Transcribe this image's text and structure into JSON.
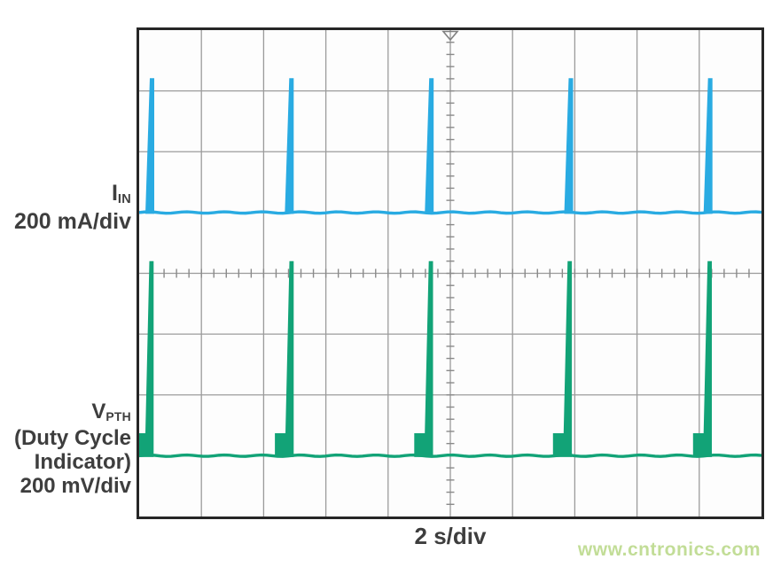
{
  "figure": {
    "background": "#ffffff",
    "plot_border_color": "#262626",
    "grid_color": "#9b9b9b",
    "tick_color": "#8a8a8a",
    "trigger_marker_color": "#808080",
    "text_color": "#3e3e3e"
  },
  "labels": {
    "ch1_symbol": "I",
    "ch1_sub": "IN",
    "ch1_scale": "200 mA/div",
    "ch2_symbol": "V",
    "ch2_sub": "PTH",
    "ch2_note1": "(Duty Cycle",
    "ch2_note2": "Indicator)",
    "ch2_scale": "200 mV/div",
    "x_axis": "2 s/div",
    "watermark": "www.cntronics.com",
    "watermark_color": "#c2dd97"
  },
  "chart_data": {
    "type": "line",
    "subtype": "oscilloscope-pulse-trains",
    "title": "",
    "xlabel": "2 s/div",
    "x_axis": {
      "seconds_per_division": 2,
      "divisions": 10,
      "total_span_s": 20
    },
    "y_axis": {
      "divisions": 8
    },
    "grid": "on",
    "trigger_marker_x_div": 5.0,
    "center_tick_minor_per_div": 5,
    "series": [
      {
        "id": "iin",
        "name": "IIN",
        "scale": "200 mA/div",
        "color": "#29ABE2",
        "baseline_div_from_top": 3.0,
        "pulse_peak_div_from_top": 0.79,
        "pulse_amplitude_above_baseline": "approx. 440 mA (2.2 div)",
        "pulse_centers_x_div": [
          0.2,
          2.44,
          4.69,
          6.93,
          9.17
        ],
        "pulse_period_s": 4.5,
        "pulse_width_div": 0.14,
        "has_pre_pulse_step": false
      },
      {
        "id": "vpth",
        "name": "VPTH (Duty Cycle Indicator)",
        "scale": "200 mV/div",
        "color": "#12A377",
        "baseline_div_from_top": 7.0,
        "pulse_peak_div_from_top": 3.8,
        "pulse_amplitude_above_baseline": "approx. 640 mV (3.2 div)",
        "pulse_centers_x_div": [
          0.2,
          2.45,
          4.69,
          6.92,
          9.17
        ],
        "pulse_period_s": 4.5,
        "pulse_width_div": 0.16,
        "has_pre_pulse_step": true,
        "pre_pulse_step_div_above_baseline": 0.37,
        "pre_pulse_step_width_div": 0.17
      }
    ]
  }
}
